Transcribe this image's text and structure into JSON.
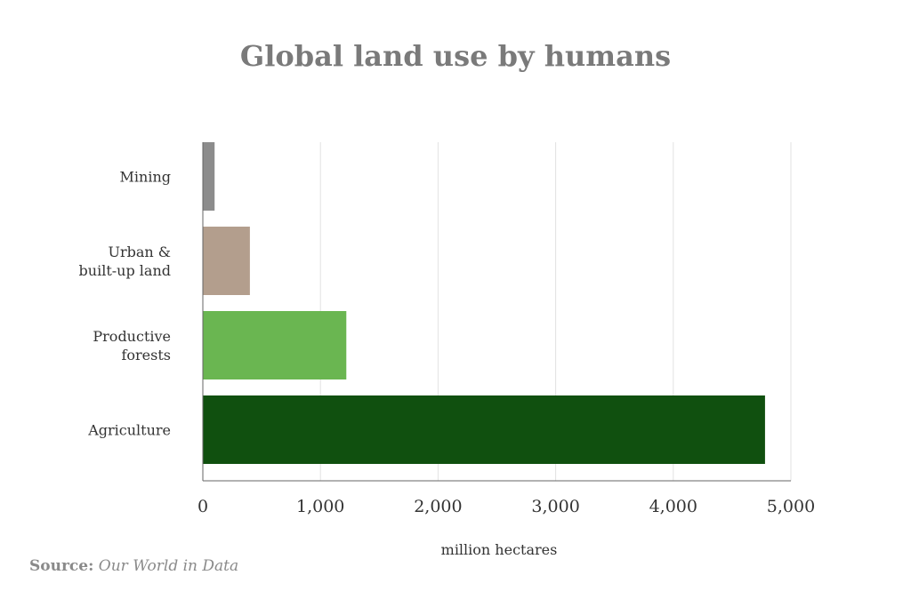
{
  "chart_data": {
    "type": "bar",
    "orientation": "horizontal",
    "title": "Global land use by humans",
    "xlabel": "million hectares",
    "ylabel": "",
    "xlim": [
      0,
      5000
    ],
    "x_ticks": [
      0,
      1000,
      2000,
      3000,
      4000,
      5000
    ],
    "x_tick_labels": [
      "0",
      "1,000",
      "2,000",
      "3,000",
      "4,000",
      "5,000"
    ],
    "grid": "vertical",
    "categories": [
      {
        "label": [
          "Mining"
        ],
        "value": 100,
        "color": "#8c8c8c"
      },
      {
        "label": [
          "Urban &",
          "built-up land"
        ],
        "value": 400,
        "color": "#b39e8d"
      },
      {
        "label": [
          "Productive",
          "forests"
        ],
        "value": 1220,
        "color": "#6ab651"
      },
      {
        "label": [
          "Agriculture"
        ],
        "value": 4780,
        "color": "#10500f"
      }
    ]
  },
  "source": {
    "label": "Source:",
    "value": "Our World in Data"
  }
}
